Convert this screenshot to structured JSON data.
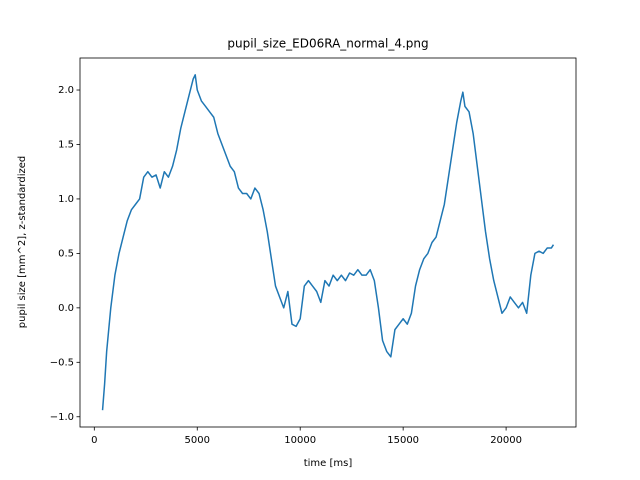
{
  "chart_data": {
    "type": "line",
    "title": "pupil_size_ED06RA_normal_4.png",
    "x_label": "time [ms]",
    "y_label": "pupil size [mm^2], z-standardized",
    "color": "#1f77b4",
    "x": [
      400,
      500,
      600,
      800,
      1000,
      1200,
      1400,
      1600,
      1800,
      2000,
      2200,
      2400,
      2600,
      2800,
      3000,
      3200,
      3400,
      3600,
      3800,
      4000,
      4200,
      4400,
      4600,
      4800,
      4900,
      5000,
      5200,
      5400,
      5600,
      5800,
      6000,
      6200,
      6400,
      6600,
      6800,
      7000,
      7200,
      7400,
      7600,
      7800,
      8000,
      8200,
      8400,
      8600,
      8800,
      9000,
      9200,
      9400,
      9600,
      9800,
      10000,
      10200,
      10400,
      10600,
      10800,
      11000,
      11200,
      11400,
      11600,
      11800,
      12000,
      12200,
      12400,
      12600,
      12800,
      13000,
      13200,
      13400,
      13600,
      13800,
      14000,
      14200,
      14400,
      14600,
      14800,
      15000,
      15200,
      15400,
      15600,
      15800,
      16000,
      16200,
      16400,
      16600,
      16800,
      17000,
      17200,
      17400,
      17600,
      17800,
      17900,
      18000,
      18200,
      18400,
      18600,
      18800,
      19000,
      19200,
      19400,
      19600,
      19800,
      20000,
      20200,
      20400,
      20600,
      20800,
      21000,
      21200,
      21400,
      21600,
      21800,
      22000,
      22200,
      22300
    ],
    "values": [
      -0.94,
      -0.7,
      -0.4,
      0.0,
      0.3,
      0.5,
      0.65,
      0.8,
      0.9,
      0.95,
      1.0,
      1.2,
      1.25,
      1.2,
      1.22,
      1.1,
      1.25,
      1.2,
      1.3,
      1.45,
      1.65,
      1.8,
      1.95,
      2.1,
      2.14,
      2.0,
      1.9,
      1.85,
      1.8,
      1.75,
      1.6,
      1.5,
      1.4,
      1.3,
      1.25,
      1.1,
      1.05,
      1.05,
      1.0,
      1.1,
      1.05,
      0.9,
      0.7,
      0.45,
      0.2,
      0.1,
      0.0,
      0.15,
      -0.15,
      -0.17,
      -0.1,
      0.2,
      0.25,
      0.2,
      0.15,
      0.05,
      0.25,
      0.2,
      0.3,
      0.25,
      0.3,
      0.25,
      0.32,
      0.3,
      0.35,
      0.3,
      0.3,
      0.35,
      0.25,
      0.0,
      -0.3,
      -0.4,
      -0.45,
      -0.2,
      -0.15,
      -0.1,
      -0.15,
      -0.05,
      0.2,
      0.35,
      0.45,
      0.5,
      0.6,
      0.65,
      0.8,
      0.95,
      1.2,
      1.45,
      1.7,
      1.9,
      1.98,
      1.85,
      1.8,
      1.6,
      1.3,
      1.0,
      0.7,
      0.45,
      0.25,
      0.1,
      -0.05,
      0.0,
      0.1,
      0.05,
      0.0,
      0.05,
      -0.05,
      0.3,
      0.5,
      0.52,
      0.5,
      0.55,
      0.55,
      0.58
    ],
    "xlim": [
      -695,
      23395
    ],
    "ylim": [
      -1.094,
      2.294
    ],
    "xticks": [
      0,
      5000,
      10000,
      15000,
      20000
    ],
    "yticks": [
      {
        "value": -1.0,
        "label": "−1.0"
      },
      {
        "value": -0.5,
        "label": "−0.5"
      },
      {
        "value": 0.0,
        "label": "0.0"
      },
      {
        "value": 0.5,
        "label": "0.5"
      },
      {
        "value": 1.0,
        "label": "1.0"
      },
      {
        "value": 1.5,
        "label": "1.5"
      },
      {
        "value": 2.0,
        "label": "2.0"
      }
    ]
  }
}
